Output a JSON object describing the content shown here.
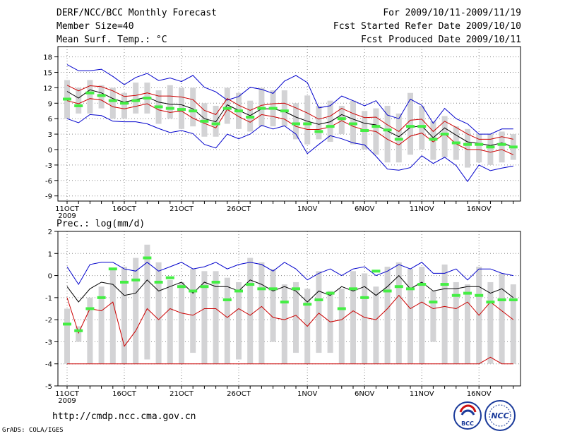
{
  "header": {
    "title": "DERF/NCC/BCC Monthly Forecast",
    "member_size": "Member Size=40",
    "variable1": "Mean Surf. Temp.: °C",
    "for_range": "For 2009/10/11-2009/11/19",
    "started": "Fcst Started Refer Date 2009/10/10",
    "produced": "Fcst Produced Date 2009/10/11"
  },
  "footer": {
    "url": "http://cmdp.ncc.cma.gov.cn",
    "grads": "GrADS: COLA/IGES",
    "bcc_logo_text": "BCC",
    "ncc_logo_text": "NCC"
  },
  "chart_data": [
    {
      "type": "line",
      "title": "Mean Surf. Temp.: °C",
      "ylim": [
        -10,
        20
      ],
      "yticks": [
        18,
        15,
        12,
        9,
        6,
        3,
        0,
        -3,
        -6,
        -9
      ],
      "xtick_labels": [
        "11OCT",
        "16OCT",
        "21OCT",
        "26OCT",
        "1NOV",
        "6NOV",
        "11NOV",
        "16NOV"
      ],
      "xtick_days": [
        1,
        6,
        11,
        16,
        22,
        27,
        32,
        37
      ],
      "year_label": "2009",
      "grid": true,
      "days": 40,
      "series": [
        {
          "name": "max",
          "color": "#0000cc",
          "values": [
            16.5,
            15.3,
            15.3,
            15.6,
            14.2,
            12.6,
            14.0,
            14.8,
            13.4,
            13.9,
            13.2,
            14.4,
            12.1,
            11.2,
            9.6,
            10.3,
            12.1,
            11.7,
            10.9,
            13.3,
            14.4,
            13.0,
            8.1,
            8.5,
            10.4,
            9.5,
            8.5,
            9.5,
            6.7,
            6.0,
            9.8,
            8.6,
            5.1,
            8.0,
            6.0,
            5.0,
            3.0,
            3.0,
            4.0,
            4.0
          ]
        },
        {
          "name": "upper",
          "color": "#cc0000",
          "values": [
            12.5,
            11.4,
            12.4,
            12.2,
            11.4,
            10.3,
            10.5,
            11.0,
            10.4,
            10.4,
            10.2,
            9.7,
            7.6,
            6.8,
            9.9,
            8.6,
            7.6,
            8.6,
            8.9,
            9.0,
            8.1,
            7.1,
            5.9,
            6.5,
            8.0,
            7.0,
            6.2,
            6.3,
            4.8,
            3.5,
            5.7,
            5.9,
            3.5,
            5.5,
            4.3,
            3.0,
            2.0,
            2.0,
            2.5,
            2.0
          ]
        },
        {
          "name": "mean",
          "color": "#000000",
          "values": [
            11.3,
            10.0,
            11.6,
            11.0,
            9.9,
            9.2,
            9.7,
            10.2,
            9.2,
            8.8,
            8.7,
            7.9,
            6.0,
            5.4,
            8.7,
            7.6,
            6.6,
            7.9,
            7.9,
            7.4,
            6.3,
            5.5,
            4.9,
            5.4,
            6.8,
            5.9,
            5.1,
            4.8,
            3.6,
            2.5,
            4.3,
            4.6,
            2.3,
            4.2,
            2.8,
            1.5,
            1.2,
            0.8,
            1.3,
            0.5
          ]
        },
        {
          "name": "lower",
          "color": "#cc0000",
          "values": [
            9.5,
            8.9,
            9.9,
            9.6,
            8.3,
            7.9,
            8.4,
            8.9,
            7.7,
            7.2,
            7.5,
            6.1,
            5.1,
            4.2,
            7.8,
            6.4,
            5.3,
            6.8,
            6.4,
            5.9,
            4.5,
            3.9,
            3.9,
            4.4,
            5.6,
            4.5,
            3.8,
            3.5,
            2.0,
            0.9,
            2.6,
            3.2,
            1.5,
            3.1,
            1.1,
            0.0,
            0.0,
            -0.5,
            0.0,
            -1.0
          ]
        },
        {
          "name": "min",
          "color": "#0000cc",
          "values": [
            6.0,
            5.2,
            6.8,
            6.6,
            5.5,
            5.4,
            5.4,
            5.0,
            4.1,
            3.3,
            3.7,
            3.1,
            1.0,
            0.3,
            3.0,
            2.1,
            3.0,
            4.7,
            4.0,
            4.6,
            3.0,
            -0.8,
            1.0,
            2.7,
            2.1,
            1.3,
            0.9,
            -1.3,
            -3.8,
            -4.0,
            -3.5,
            -1.2,
            -2.7,
            -1.5,
            -3.1,
            -6.2,
            -3.0,
            -4.1,
            -3.6,
            -3.2
          ]
        }
      ],
      "box_low": [
        6.0,
        7.0,
        7.0,
        8.0,
        6.0,
        6.0,
        7.0,
        7.0,
        5.0,
        6.0,
        4.0,
        4.5,
        2.5,
        2.5,
        5.0,
        4.0,
        3.5,
        4.5,
        4.5,
        4.5,
        2.0,
        1.0,
        2.0,
        1.5,
        3.0,
        1.0,
        0.0,
        -1.0,
        -2.5,
        -2.5,
        -1.0,
        0.0,
        -2.0,
        -1.5,
        -2.0,
        -3.5,
        -2.5,
        -3.0,
        -2.5,
        -2.0
      ],
      "box_high": [
        13.5,
        12.0,
        13.5,
        12.5,
        12.0,
        11.0,
        13.0,
        13.0,
        11.5,
        12.5,
        12.0,
        12.0,
        9.0,
        8.5,
        12.0,
        11.0,
        9.5,
        12.0,
        11.5,
        11.5,
        9.0,
        10.5,
        8.5,
        9.5,
        8.5,
        9.5,
        7.5,
        8.0,
        8.5,
        7.0,
        11.0,
        8.5,
        5.5,
        6.5,
        4.5,
        4.0,
        3.0,
        3.0,
        3.5,
        3.0
      ],
      "median": [
        9.8,
        8.5,
        11.0,
        10.5,
        9.5,
        9.0,
        9.5,
        10.0,
        8.3,
        8.0,
        7.8,
        7.5,
        5.5,
        5.0,
        8.0,
        7.5,
        6.3,
        8.0,
        8.0,
        7.5,
        5.0,
        5.0,
        3.5,
        4.5,
        6.0,
        5.0,
        3.7,
        4.5,
        3.8,
        2.0,
        4.5,
        4.5,
        2.0,
        3.0,
        1.3,
        1.0,
        1.0,
        0.5,
        1.0,
        0.5
      ]
    },
    {
      "type": "line",
      "title": "Prec.: log(mm/d)",
      "ylim": [
        -5,
        2
      ],
      "yticks": [
        2,
        1,
        0,
        -1,
        -2,
        -3,
        -4,
        -5
      ],
      "xtick_labels": [
        "11OCT",
        "16OCT",
        "21OCT",
        "26OCT",
        "1NOV",
        "6NOV",
        "11NOV",
        "16NOV"
      ],
      "xtick_days": [
        1,
        6,
        11,
        16,
        22,
        27,
        32,
        37
      ],
      "year_label": "2009",
      "grid": true,
      "days": 40,
      "series": [
        {
          "name": "max",
          "color": "#0000cc",
          "values": [
            0.4,
            -0.4,
            0.5,
            0.6,
            0.6,
            0.3,
            0.2,
            0.6,
            0.2,
            0.4,
            0.6,
            0.3,
            0.4,
            0.6,
            0.3,
            0.5,
            0.6,
            0.5,
            0.2,
            0.6,
            0.3,
            -0.2,
            0.1,
            0.3,
            0.0,
            0.3,
            0.4,
            0.0,
            0.2,
            0.5,
            0.3,
            0.6,
            0.1,
            0.1,
            0.3,
            -0.2,
            0.3,
            0.3,
            0.1,
            0.0
          ]
        },
        {
          "name": "mean",
          "color": "#000000",
          "values": [
            -0.5,
            -1.2,
            -0.6,
            -0.3,
            -0.4,
            -0.9,
            -0.8,
            -0.2,
            -0.7,
            -0.5,
            -0.3,
            -0.8,
            -0.3,
            -0.5,
            -0.5,
            -0.7,
            -0.2,
            -0.4,
            -0.7,
            -0.5,
            -0.7,
            -1.2,
            -0.7,
            -0.9,
            -0.5,
            -0.7,
            -0.5,
            -0.9,
            -0.5,
            0.0,
            -0.6,
            -0.3,
            -0.7,
            -0.6,
            -0.6,
            -0.5,
            -0.5,
            -0.8,
            -0.6,
            -1.0
          ]
        },
        {
          "name": "lower",
          "color": "#cc0000",
          "values": [
            -1.0,
            -2.6,
            -1.5,
            -1.6,
            -1.2,
            -3.2,
            -2.5,
            -1.5,
            -2.0,
            -1.5,
            -1.7,
            -1.8,
            -1.5,
            -1.5,
            -1.9,
            -1.5,
            -1.8,
            -1.4,
            -1.9,
            -2.0,
            -1.8,
            -2.3,
            -1.7,
            -2.1,
            -2.0,
            -1.6,
            -1.9,
            -2.0,
            -1.5,
            -0.9,
            -1.5,
            -1.2,
            -1.5,
            -1.4,
            -1.5,
            -1.2,
            -1.8,
            -1.2,
            -1.6,
            -2.0
          ]
        },
        {
          "name": "min",
          "color": "#cc0000",
          "values": [
            -4.0,
            -4.0,
            -4.0,
            -4.0,
            -4.0,
            -4.0,
            -4.0,
            -4.0,
            -4.0,
            -4.0,
            -4.0,
            -4.0,
            -4.0,
            -4.0,
            -4.0,
            -4.0,
            -4.0,
            -4.0,
            -4.0,
            -4.0,
            -4.0,
            -4.0,
            -4.0,
            -4.0,
            -4.0,
            -4.0,
            -4.0,
            -4.0,
            -4.0,
            -4.0,
            -4.0,
            -4.0,
            -4.0,
            -4.0,
            -4.0,
            -4.0,
            -4.0,
            -3.7,
            -4.0,
            -4.0
          ]
        }
      ],
      "box_low": [
        -4.0,
        -3.0,
        -4.0,
        -4.0,
        -4.0,
        -4.0,
        -4.0,
        -3.8,
        -4.0,
        -4.0,
        -4.0,
        -3.5,
        -4.0,
        -4.0,
        -4.0,
        -3.8,
        -4.0,
        -4.0,
        -3.0,
        -4.0,
        -3.5,
        -4.0,
        -3.5,
        -3.5,
        -4.0,
        -4.0,
        -4.0,
        -4.0,
        -4.0,
        -4.0,
        -4.0,
        -4.0,
        -3.0,
        -4.0,
        -4.0,
        -4.0,
        -4.0,
        -4.0,
        -4.0,
        -4.0
      ],
      "box_high": [
        -1.5,
        -2.3,
        -1.0,
        -0.5,
        0.3,
        0.4,
        0.8,
        1.4,
        0.6,
        -0.2,
        -0.3,
        0.3,
        0.2,
        0.2,
        -0.1,
        -0.3,
        0.8,
        0.6,
        0.3,
        -0.4,
        -0.3,
        -0.6,
        0.2,
        -0.7,
        -0.6,
        0.2,
        0.1,
        -0.5,
        0.4,
        0.6,
        0.3,
        0.4,
        -0.7,
        0.5,
        -0.3,
        -0.4,
        0.4,
        -0.3,
        0.1,
        -0.4
      ],
      "median": [
        -2.2,
        -2.5,
        -1.5,
        -1.0,
        0.3,
        -0.3,
        -0.2,
        0.8,
        -0.3,
        -0.1,
        -0.5,
        -0.7,
        -0.5,
        -0.3,
        -1.1,
        -0.7,
        -0.4,
        -0.6,
        -0.6,
        -1.2,
        -0.6,
        -1.3,
        -1.1,
        -0.8,
        -1.5,
        -0.6,
        -1.0,
        0.2,
        -0.7,
        -0.5,
        -0.6,
        -0.4,
        -1.2,
        -0.4,
        -0.9,
        -0.8,
        -0.9,
        -1.2,
        -1.1,
        -1.1
      ]
    }
  ]
}
